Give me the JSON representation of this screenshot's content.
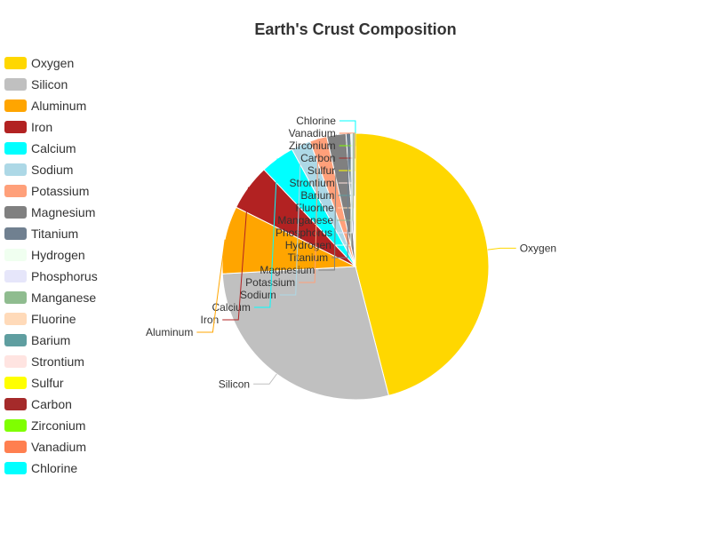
{
  "chart_data": {
    "type": "pie",
    "title": "Earth's Crust Composition",
    "legend_position": "left",
    "slices": [
      {
        "name": "Oxygen",
        "value": 46.1,
        "color": "#FFD700"
      },
      {
        "name": "Silicon",
        "value": 28.2,
        "color": "#C0C0C0"
      },
      {
        "name": "Aluminum",
        "value": 8.23,
        "color": "#FFA500"
      },
      {
        "name": "Iron",
        "value": 5.63,
        "color": "#B22222"
      },
      {
        "name": "Calcium",
        "value": 4.15,
        "color": "#00FFFF"
      },
      {
        "name": "Sodium",
        "value": 2.36,
        "color": "#ADD8E6"
      },
      {
        "name": "Potassium",
        "value": 2.09,
        "color": "#FFA07A"
      },
      {
        "name": "Magnesium",
        "value": 2.33,
        "color": "#808080"
      },
      {
        "name": "Titanium",
        "value": 0.565,
        "color": "#708090"
      },
      {
        "name": "Hydrogen",
        "value": 0.14,
        "color": "#F0FFF0"
      },
      {
        "name": "Phosphorus",
        "value": 0.105,
        "color": "#E6E6FA"
      },
      {
        "name": "Manganese",
        "value": 0.095,
        "color": "#8FBC8F"
      },
      {
        "name": "Fluorine",
        "value": 0.0585,
        "color": "#FFDAB9"
      },
      {
        "name": "Barium",
        "value": 0.0425,
        "color": "#5F9EA0"
      },
      {
        "name": "Strontium",
        "value": 0.037,
        "color": "#FFE4E1"
      },
      {
        "name": "Sulfur",
        "value": 0.035,
        "color": "#FFFF00"
      },
      {
        "name": "Carbon",
        "value": 0.02,
        "color": "#A52A2A"
      },
      {
        "name": "Zirconium",
        "value": 0.0165,
        "color": "#7FFF00"
      },
      {
        "name": "Vanadium",
        "value": 0.012,
        "color": "#FF7F50"
      },
      {
        "name": "Chlorine",
        "value": 0.0145,
        "color": "#00FFFF"
      }
    ]
  }
}
